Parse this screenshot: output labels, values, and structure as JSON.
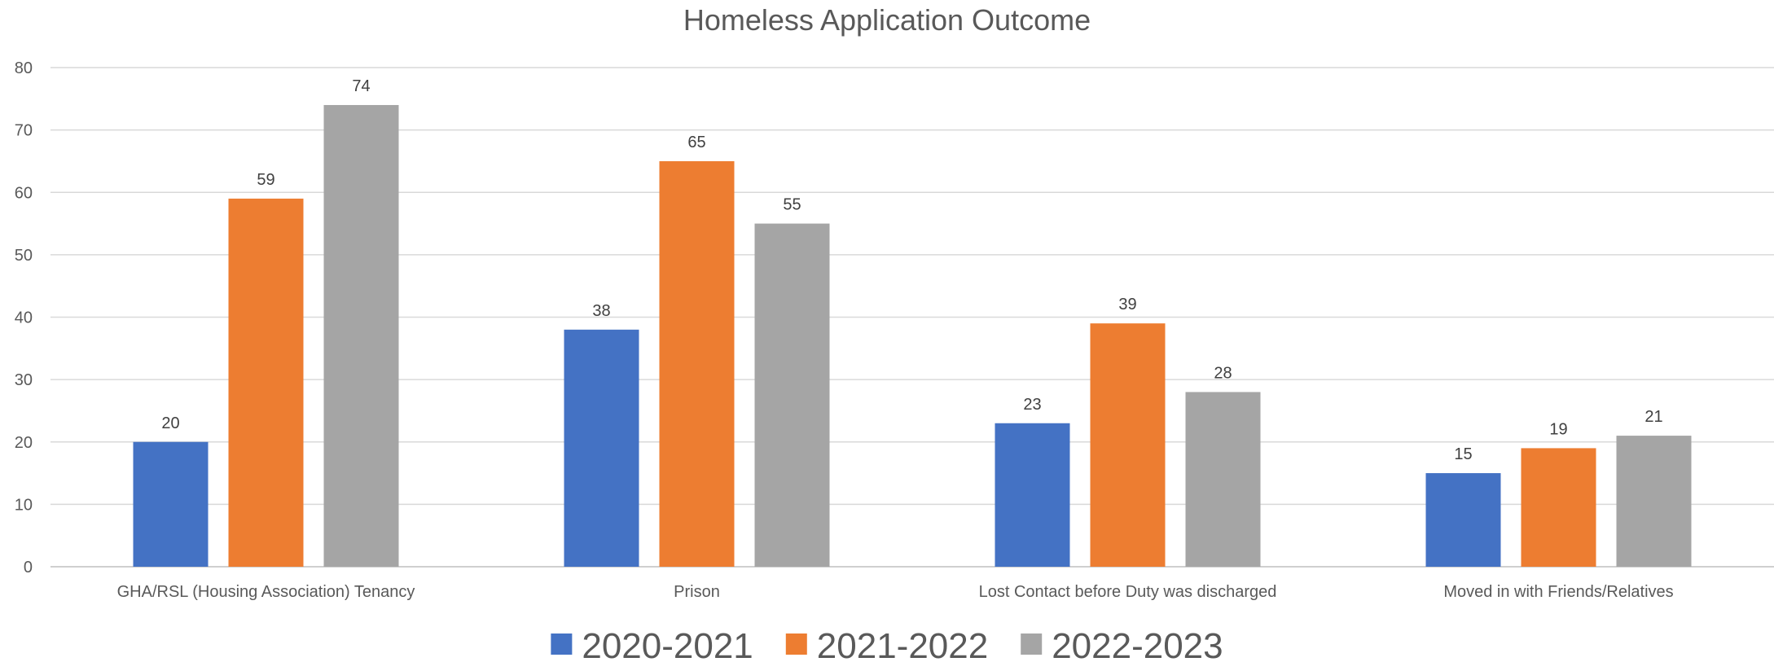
{
  "chart_data": {
    "type": "bar",
    "title": "Homeless Application Outcome",
    "xlabel": "",
    "ylabel": "",
    "categories": [
      "GHA/RSL (Housing Association) Tenancy",
      "Prison",
      "Lost Contact before Duty was discharged",
      "Moved in with Friends/Relatives"
    ],
    "series": [
      {
        "name": "2020-2021",
        "color": "#4472C4",
        "values": [
          20,
          38,
          23,
          15
        ]
      },
      {
        "name": "2021-2022",
        "color": "#ED7D31",
        "values": [
          59,
          65,
          39,
          19
        ]
      },
      {
        "name": "2022-2023",
        "color": "#A5A5A5",
        "values": [
          74,
          55,
          28,
          21
        ]
      }
    ],
    "ylim": [
      0,
      80
    ],
    "yticks": [
      0,
      10,
      20,
      30,
      40,
      50,
      60,
      70,
      80
    ],
    "grid": true,
    "legend": "bottom",
    "data_labels": true
  }
}
